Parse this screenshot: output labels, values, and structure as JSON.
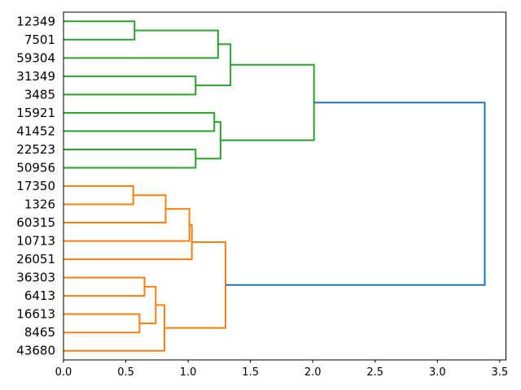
{
  "figure": {
    "background": "#ffffff"
  },
  "chart_data": {
    "type": "dendrogram",
    "orientation": "right",
    "title": "",
    "xlabel": "",
    "ylabel": "",
    "grid": false,
    "legend": null,
    "xlim": [
      0,
      3.55
    ],
    "xticks": [
      {
        "value": 0.0,
        "label": "0.0"
      },
      {
        "value": 0.5,
        "label": "0.5"
      },
      {
        "value": 1.0,
        "label": "1.0"
      },
      {
        "value": 1.5,
        "label": "1.5"
      },
      {
        "value": 2.0,
        "label": "2.0"
      },
      {
        "value": 2.5,
        "label": "2.5"
      },
      {
        "value": 3.0,
        "label": "3.0"
      },
      {
        "value": 3.5,
        "label": "3.5"
      }
    ],
    "leaf_order_top_to_bottom": [
      "12349",
      "7501",
      "59304",
      "31349",
      "3485",
      "15921",
      "41452",
      "22523",
      "50956",
      "17350",
      "1326",
      "60315",
      "10713",
      "26051",
      "36303",
      "6413",
      "16613",
      "8465",
      "43680"
    ],
    "links": [
      {
        "name": "G1",
        "children": [
          "12349",
          "7501"
        ],
        "distance": 0.57,
        "color": "green"
      },
      {
        "name": "G2",
        "children": [
          "G1",
          "59304"
        ],
        "distance": 1.24,
        "color": "green"
      },
      {
        "name": "G3",
        "children": [
          "31349",
          "3485"
        ],
        "distance": 1.06,
        "color": "green"
      },
      {
        "name": "G4",
        "children": [
          "G2",
          "G3"
        ],
        "distance": 1.34,
        "color": "green"
      },
      {
        "name": "G5",
        "children": [
          "15921",
          "41452"
        ],
        "distance": 1.21,
        "color": "green"
      },
      {
        "name": "G6",
        "children": [
          "22523",
          "50956"
        ],
        "distance": 1.06,
        "color": "green"
      },
      {
        "name": "G7",
        "children": [
          "G5",
          "G6"
        ],
        "distance": 1.26,
        "color": "green"
      },
      {
        "name": "G8",
        "children": [
          "G4",
          "G7"
        ],
        "distance": 2.01,
        "color": "green"
      },
      {
        "name": "O1",
        "children": [
          "17350",
          "1326"
        ],
        "distance": 0.56,
        "color": "orange"
      },
      {
        "name": "O2",
        "children": [
          "O1",
          "60315"
        ],
        "distance": 0.82,
        "color": "orange"
      },
      {
        "name": "O3",
        "children": [
          "O2",
          "10713"
        ],
        "distance": 1.01,
        "color": "orange"
      },
      {
        "name": "O4",
        "children": [
          "O3",
          "26051"
        ],
        "distance": 1.03,
        "color": "orange"
      },
      {
        "name": "O5",
        "children": [
          "36303",
          "6413"
        ],
        "distance": 0.65,
        "color": "orange"
      },
      {
        "name": "O6",
        "children": [
          "16613",
          "8465"
        ],
        "distance": 0.61,
        "color": "orange"
      },
      {
        "name": "O7",
        "children": [
          "O5",
          "O6"
        ],
        "distance": 0.74,
        "color": "orange"
      },
      {
        "name": "O8",
        "children": [
          "O7",
          "43680"
        ],
        "distance": 0.81,
        "color": "orange"
      },
      {
        "name": "O9",
        "children": [
          "O4",
          "O8"
        ],
        "distance": 1.3,
        "color": "orange"
      },
      {
        "name": "ROOT",
        "children": [
          "G8",
          "O9"
        ],
        "distance": 3.38,
        "color": "blue"
      }
    ],
    "colors": {
      "green": "#2ca02c",
      "orange": "#ff7f0e",
      "blue": "#1f77b4",
      "axis": "#000000"
    }
  }
}
